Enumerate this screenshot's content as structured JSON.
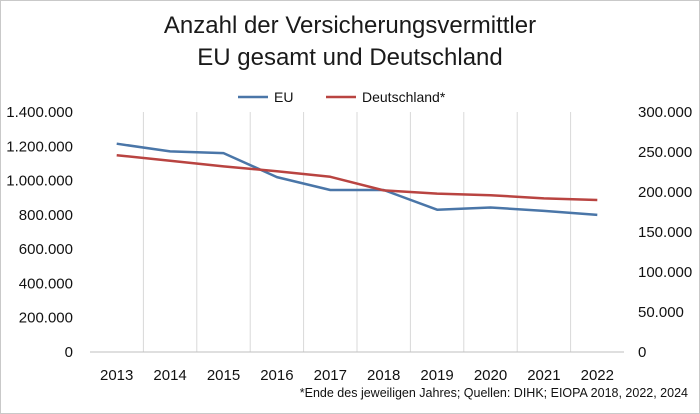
{
  "chart_data": {
    "type": "line",
    "title": "Anzahl der Versicherungsvermittler",
    "subtitle": "EU gesamt und Deutschland",
    "categories": [
      "2013",
      "2014",
      "2015",
      "2016",
      "2017",
      "2018",
      "2019",
      "2020",
      "2021",
      "2022"
    ],
    "series": [
      {
        "name": "EU",
        "axis": "left",
        "color": "#4a76a8",
        "values": [
          1215000,
          1170000,
          1160000,
          1020000,
          945000,
          945000,
          830000,
          843000,
          823000,
          800000
        ]
      },
      {
        "name": "Deutschland*",
        "axis": "right",
        "color": "#b94441",
        "values": [
          246000,
          239000,
          232000,
          226000,
          219000,
          202000,
          198000,
          196000,
          192000,
          190000
        ]
      }
    ],
    "y_left": {
      "min": 0,
      "max": 1400000,
      "ticks": [
        "0",
        "200.000",
        "400.000",
        "600.000",
        "800.000",
        "1.000.000",
        "1.200.000",
        "1.400.000"
      ]
    },
    "y_right": {
      "min": 0,
      "max": 300000,
      "ticks": [
        "0",
        "50.000",
        "100.000",
        "150.000",
        "200.000",
        "250.000",
        "300.000"
      ]
    },
    "legend_position": "top",
    "grid": "vertical",
    "footnote": "*Ende des jeweiligen Jahres; Quellen: DIHK; EIOPA 2018, 2022, 2024"
  }
}
